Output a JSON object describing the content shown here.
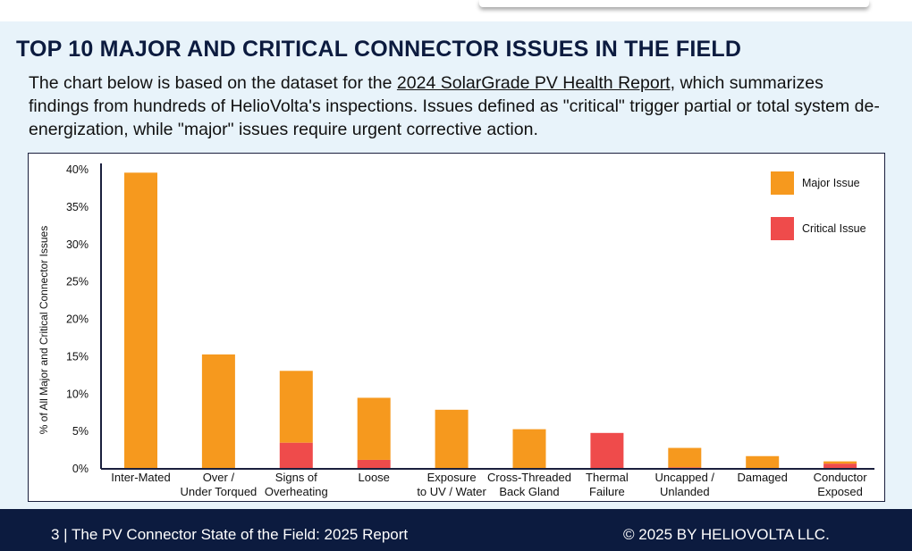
{
  "page": {
    "title": "TOP 10 MAJOR AND CRITICAL CONNECTOR ISSUES IN THE FIELD",
    "intro_before": "The chart below is based on the dataset for the ",
    "intro_link": "2024 SolarGrade PV Health Report,",
    "intro_after": " which summarizes findings from hundreds of HelioVolta's inspections. Issues defined as \"critical\" trigger partial or total system de-energization, while \"major\" issues require urgent corrective action."
  },
  "footer": {
    "left": "3 | The PV Connector State of the Field: 2025 Report",
    "right": "© 2025 BY HELIOVOLTA LLC."
  },
  "colors": {
    "major": "#f6991e",
    "critical": "#ef4b4b",
    "background": "#e8f3fa",
    "navy": "#0c1b3f"
  },
  "chart_data": {
    "type": "bar",
    "stacked": true,
    "categories": [
      [
        "Inter-Mated"
      ],
      [
        "Over /",
        "Under Torqued"
      ],
      [
        "Signs of",
        "Overheating"
      ],
      [
        "Loose"
      ],
      [
        "Exposure",
        "to UV / Water"
      ],
      [
        "Cross-Threaded",
        "Back Gland"
      ],
      [
        "Thermal",
        "Failure"
      ],
      [
        "Uncapped /",
        "Unlanded"
      ],
      [
        "Damaged"
      ],
      [
        "Conductor",
        "Exposed"
      ]
    ],
    "series": [
      {
        "name": "Critical Issue",
        "color": "#ef4b4b",
        "values": [
          0,
          0,
          3.5,
          1.2,
          0,
          0,
          4.8,
          0.2,
          0,
          0.7
        ]
      },
      {
        "name": "Major Issue",
        "color": "#f6991e",
        "values": [
          39.6,
          15.3,
          9.6,
          8.3,
          7.9,
          5.3,
          0,
          2.6,
          1.7,
          0.3
        ]
      }
    ],
    "ylabel": "% of All Major and Critical Connector Issues",
    "xlabel": "",
    "ylim": [
      0,
      40
    ],
    "yticks": [
      0,
      5,
      10,
      15,
      20,
      25,
      30,
      35,
      40
    ],
    "ytick_labels": [
      "0%",
      "5%",
      "10%",
      "15%",
      "20%",
      "25%",
      "30%",
      "35%",
      "40%"
    ],
    "legend": [
      "Major Issue",
      "Critical Issue"
    ],
    "legend_position": "top-right",
    "grid": false
  }
}
